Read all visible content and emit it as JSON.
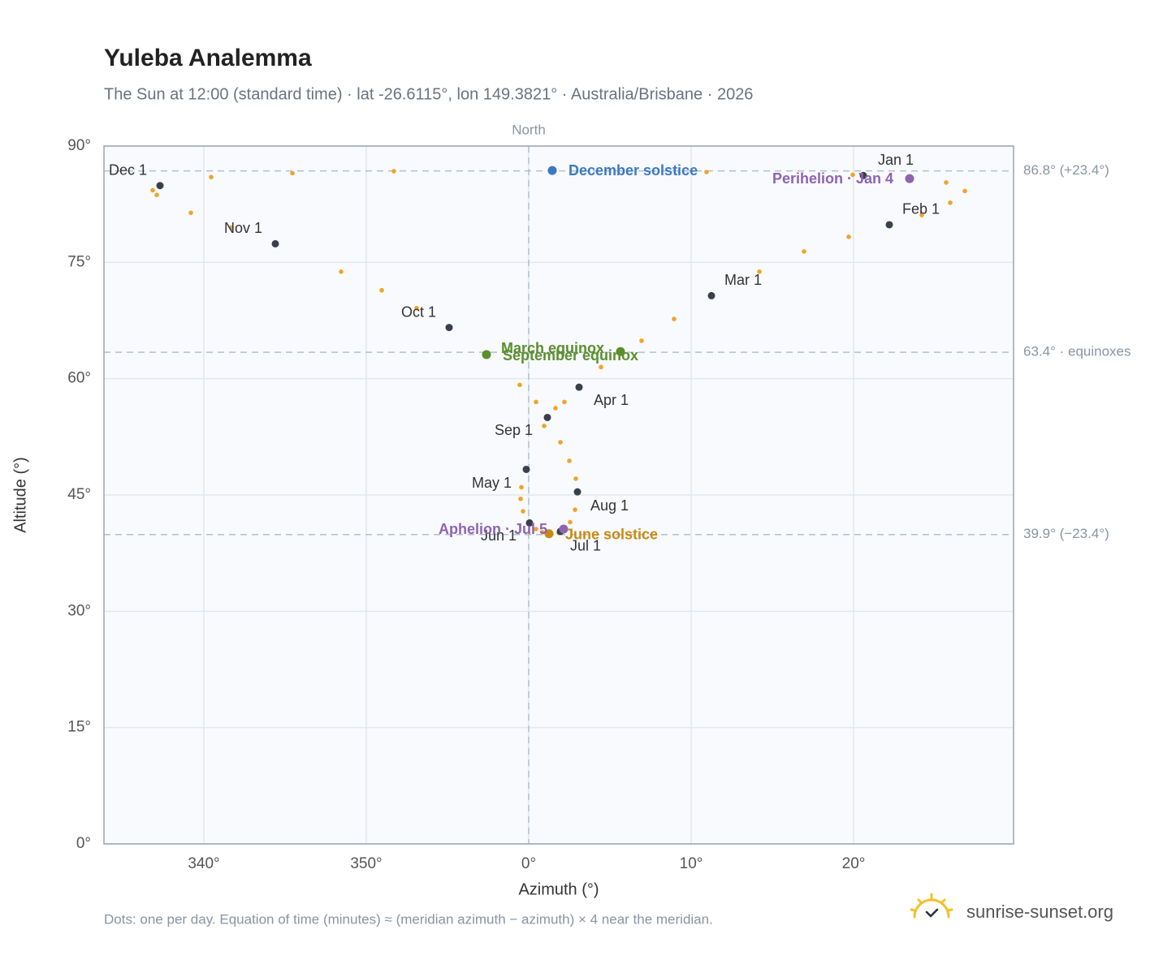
{
  "chart_data": {
    "type": "scatter",
    "title": "Yuleba Analemma",
    "subtitle": "The Sun at 12:00 (standard time) · lat -26.6115°, lon 149.3821° · Australia/Brisbane · 2026",
    "x_label": "Azimuth (°)",
    "y_label": "Altitude (°)",
    "xlim": [
      333.85,
      389.85
    ],
    "ylim": [
      0,
      90
    ],
    "xticks": [
      {
        "value": 340,
        "label": "340°"
      },
      {
        "value": 350,
        "label": "350°"
      },
      {
        "value": 360,
        "label": "0°"
      },
      {
        "value": 370,
        "label": "10°"
      },
      {
        "value": 380,
        "label": "20°"
      }
    ],
    "yticks": [
      {
        "value": 0,
        "label": "0°"
      },
      {
        "value": 15,
        "label": "15°"
      },
      {
        "value": 30,
        "label": "30°"
      },
      {
        "value": 45,
        "label": "45°"
      },
      {
        "value": 60,
        "label": "60°"
      },
      {
        "value": 75,
        "label": "75°"
      },
      {
        "value": 90,
        "label": "90°"
      }
    ],
    "grid": true,
    "north": {
      "value": 360,
      "label": "North"
    },
    "ref_lines": [
      {
        "value": 86.8,
        "label": "86.8° (+23.4°)"
      },
      {
        "value": 63.4,
        "label": "63.4° · equinoxes"
      },
      {
        "value": 39.9,
        "label": "39.9° (−23.4°)"
      }
    ],
    "points": {
      "color": "#f0a42a",
      "x": [
        380.6,
        383.45,
        385.7,
        386.85,
        385.95,
        384.2,
        382.2,
        379.7,
        376.95,
        374.2,
        371.25,
        368.95,
        366.95,
        365.65,
        364.45,
        363.1,
        362.2,
        361.65,
        360.95,
        359.85,
        359.55,
        359.5,
        359.65,
        360.05,
        360.45,
        360.85,
        361.25,
        361.85,
        361.95,
        362.15,
        362.55,
        362.85,
        363.0,
        362.9,
        362.5,
        361.95,
        361.15,
        360.45,
        359.45,
        357.4,
        355.1,
        353.1,
        350.95,
        348.45,
        344.4,
        341.7,
        339.2,
        337.1,
        336.85,
        337.3,
        340.45,
        345.45,
        351.7,
        361.45,
        370.95,
        379.95
      ],
      "y": [
        86.2,
        85.8,
        85.3,
        84.2,
        82.7,
        81.1,
        79.85,
        78.3,
        76.4,
        73.8,
        70.7,
        67.7,
        64.9,
        63.5,
        61.5,
        58.9,
        57.0,
        56.2,
        53.9,
        48.3,
        46.0,
        44.5,
        42.9,
        41.4,
        40.6,
        40.2,
        40.0,
        40.1,
        40.3,
        40.6,
        41.5,
        43.1,
        45.4,
        47.1,
        49.4,
        51.8,
        55.0,
        57.0,
        59.2,
        63.1,
        66.6,
        69.1,
        71.4,
        73.8,
        77.4,
        79.5,
        81.4,
        83.7,
        84.3,
        84.9,
        86.0,
        86.5,
        86.75,
        86.85,
        86.65,
        86.3
      ]
    },
    "months": {
      "color": "#3a3f4a",
      "labels": [
        "Jan 1",
        "Feb 1",
        "Mar 1",
        "Apr 1",
        "May 1",
        "Jun 1",
        "Jul 1",
        "Aug 1",
        "Sep 1",
        "Oct 1",
        "Nov 1",
        "Dec 1"
      ],
      "x": [
        380.6,
        382.2,
        371.25,
        363.1,
        359.85,
        360.05,
        361.95,
        363.0,
        361.15,
        355.1,
        344.4,
        337.3
      ],
      "y": [
        86.2,
        79.85,
        70.7,
        58.9,
        48.3,
        41.4,
        40.3,
        45.4,
        55.0,
        66.6,
        77.4,
        84.9
      ]
    },
    "events": [
      {
        "label": "December solstice",
        "color": "#3b78c2",
        "x": 361.45,
        "y": 86.85
      },
      {
        "label": "March equinox",
        "color": "#5a8f2e",
        "x": 365.65,
        "y": 63.5
      },
      {
        "label": "September equinox",
        "color": "#5a8f2e",
        "x": 357.4,
        "y": 63.1
      },
      {
        "label": "June solstice",
        "color": "#c98a12",
        "x": 361.25,
        "y": 40.0
      },
      {
        "label": "Perihelion · Jan 4",
        "color": "#8e63b0",
        "x": 383.45,
        "y": 85.8
      },
      {
        "label": "Aphelion · Jul 5",
        "color": "#8e63b0",
        "x": 362.15,
        "y": 40.6
      }
    ],
    "footnote": "Dots: one per day. Equation of time (minutes) ≈ (meridian azimuth − azimuth) × 4 near the meridian.",
    "source": "sunrise-sunset.org"
  }
}
